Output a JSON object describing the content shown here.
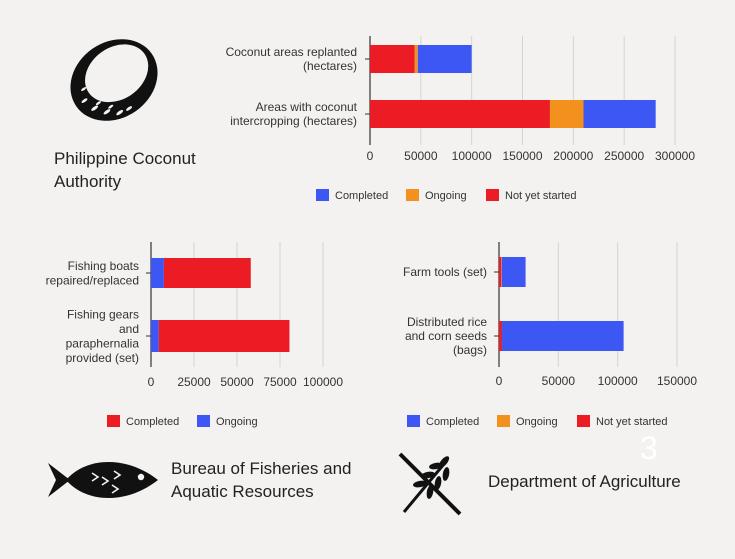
{
  "agencies": {
    "pca": "Philippine Coconut\nAuthority",
    "bfar": "Bureau of Fisheries and\nAquatic Resources",
    "da": "Department of Agriculture"
  },
  "page_number": "3",
  "colors": {
    "completed_blue": "#3c57f4",
    "ongoing_orange": "#f2911e",
    "not_started_red": "#ec1c24",
    "completed_red": "#ec1c24",
    "ongoing_blue": "#3c57f4"
  },
  "chart_data": [
    {
      "type": "bar",
      "orientation": "horizontal",
      "stacked": true,
      "categories": [
        "Coconut areas replanted\n(hectares)",
        "Areas with coconut\nintercropping (hectares)"
      ],
      "series": [
        {
          "name": "Not yet started",
          "color": "#ec1c24",
          "values": [
            44000,
            177000
          ]
        },
        {
          "name": "Ongoing",
          "color": "#f2911e",
          "values": [
            3000,
            33000
          ]
        },
        {
          "name": "Completed",
          "color": "#3c57f4",
          "values": [
            53000,
            71000
          ]
        }
      ],
      "legend": [
        "Completed",
        "Ongoing",
        "Not yet started"
      ],
      "legend_colors": [
        "#3c57f4",
        "#f2911e",
        "#ec1c24"
      ],
      "xlim": [
        0,
        300000
      ],
      "xticks": [
        0,
        50000,
        100000,
        150000,
        200000,
        250000,
        300000
      ],
      "grid": true,
      "legend_position": "bottom"
    },
    {
      "type": "bar",
      "orientation": "horizontal",
      "stacked": true,
      "categories": [
        "Fishing boats\nrepaired/replaced",
        "Fishing gears\nand\nparaphernalia\nprovided (set)"
      ],
      "series": [
        {
          "name": "Ongoing",
          "color": "#3c57f4",
          "values": [
            7500,
            4500
          ]
        },
        {
          "name": "Completed",
          "color": "#ec1c24",
          "values": [
            50500,
            76000
          ]
        }
      ],
      "legend": [
        "Completed",
        "Ongoing"
      ],
      "legend_colors": [
        "#ec1c24",
        "#3c57f4"
      ],
      "xlim": [
        0,
        100000
      ],
      "xticks": [
        0,
        25000,
        50000,
        75000,
        100000
      ],
      "grid": true,
      "legend_position": "bottom"
    },
    {
      "type": "bar",
      "orientation": "horizontal",
      "stacked": true,
      "categories": [
        "Farm tools (set)",
        "Distributed rice\nand corn seeds\n(bags)"
      ],
      "series": [
        {
          "name": "Not yet started",
          "color": "#ec1c24",
          "values": [
            2000,
            2500
          ]
        },
        {
          "name": "Ongoing",
          "color": "#f2911e",
          "values": [
            400,
            0
          ]
        },
        {
          "name": "Completed",
          "color": "#3c57f4",
          "values": [
            20000,
            102500
          ]
        }
      ],
      "legend": [
        "Completed",
        "Ongoing",
        "Not yet started"
      ],
      "legend_colors": [
        "#3c57f4",
        "#f2911e",
        "#ec1c24"
      ],
      "xlim": [
        0,
        150000
      ],
      "xticks": [
        0,
        50000,
        100000,
        150000
      ],
      "grid": true,
      "legend_position": "bottom"
    }
  ]
}
